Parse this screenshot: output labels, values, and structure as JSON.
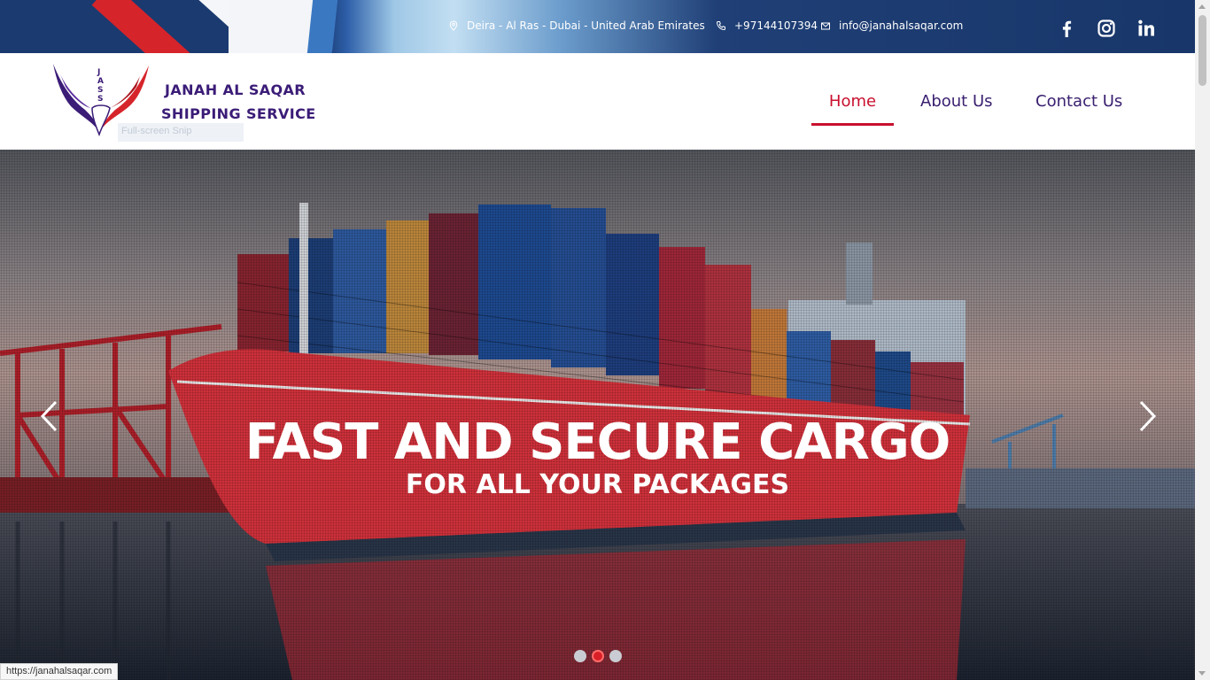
{
  "topbar": {
    "address": "Deira - Al Ras - Dubai - United Arab Emirates",
    "phone": "+97144107394",
    "email": "info@janahalsaqar.com",
    "social_icons": [
      "facebook-icon",
      "instagram-icon",
      "linkedin-icon"
    ]
  },
  "header": {
    "logo_mark": "JASS",
    "logo_line1": "JANAH AL SAQAR",
    "logo_line2": "SHIPPING SERVICE",
    "snip_label": "Full-screen Snip",
    "nav": [
      {
        "label": "Home",
        "active": true
      },
      {
        "label": "About Us",
        "active": false
      },
      {
        "label": "Contact Us",
        "active": false
      }
    ]
  },
  "hero": {
    "title": "FAST AND SECURE CARGO",
    "subtitle": "FOR ALL YOUR PACKAGES",
    "slide_count": 3,
    "active_slide": 2
  },
  "status_bar": {
    "url": "https://janahalsaqar.com"
  },
  "colors": {
    "brand_navy": "#1a3a70",
    "brand_purple": "#3b1c77",
    "accent_red": "#c8102e"
  }
}
